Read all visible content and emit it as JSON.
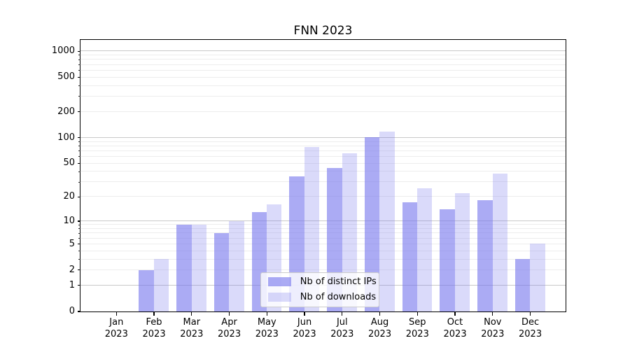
{
  "chart_data": {
    "type": "bar",
    "title": "FNN 2023",
    "categories": [
      "Jan 2023",
      "Feb 2023",
      "Mar 2023",
      "Apr 2023",
      "May 2023",
      "Jun 2023",
      "Jul 2023",
      "Aug 2023",
      "Sep 2023",
      "Oct 2023",
      "Nov 2023",
      "Dec 2023"
    ],
    "series": [
      {
        "name": "Nb of distinct IPs",
        "color": "rgba(119,119,238,0.62)",
        "values": [
          0,
          2,
          9,
          7,
          13,
          35,
          44,
          100,
          17,
          14,
          18,
          3
        ]
      },
      {
        "name": "Nb of downloads",
        "color": "rgba(119,119,238,0.27)",
        "values": [
          0,
          3,
          9,
          10,
          16,
          78,
          66,
          118,
          25,
          22,
          38,
          5
        ]
      }
    ],
    "xlabel": "",
    "ylabel": "",
    "yscale": "log(1+x)",
    "ylim": [
      0,
      1350
    ],
    "y_ticks": [
      0,
      1,
      2,
      5,
      10,
      20,
      50,
      100,
      200,
      500,
      1000
    ],
    "grid": true,
    "legend_position": "lower center",
    "colors": {
      "major_grid": "#c9c9c9",
      "minor_grid": "#ededed",
      "spine": "#000000",
      "text": "#000000"
    }
  }
}
